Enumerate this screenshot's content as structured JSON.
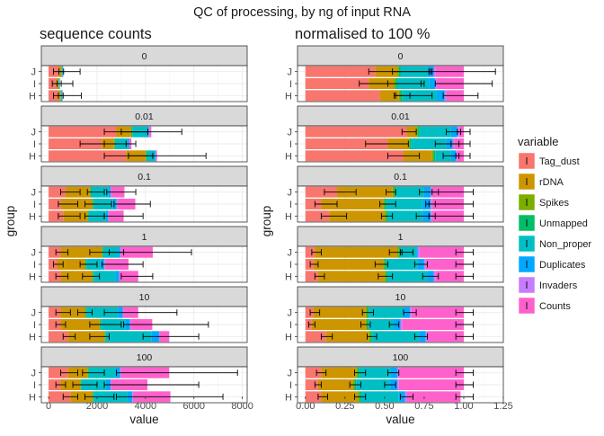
{
  "chart_data": {
    "title": "QC of processing, by ng of input RNA",
    "legend": {
      "title": "variable",
      "placement": "right",
      "items": [
        {
          "name": "Tag_dust",
          "color": "#F8766D"
        },
        {
          "name": "rDNA",
          "color": "#CD9600"
        },
        {
          "name": "Spikes",
          "color": "#7CAE00"
        },
        {
          "name": "Unmapped",
          "color": "#00BE67"
        },
        {
          "name": "Non_proper",
          "color": "#00BFC4"
        },
        {
          "name": "Duplicates",
          "color": "#00A9FF"
        },
        {
          "name": "Invaders",
          "color": "#C77CFF"
        },
        {
          "name": "Counts",
          "color": "#FF61CC"
        }
      ]
    },
    "panels": [
      {
        "id": "counts",
        "type": "bar",
        "subtitle": "sequence counts",
        "xlabel": "value",
        "ylabel": "group",
        "xlim": [
          -300,
          8200
        ],
        "xticks": [
          0,
          2000,
          4000,
          6000,
          8000
        ],
        "xtick_labels": [
          "0",
          "2000",
          "4000",
          "6000",
          "8000"
        ],
        "grid": true
      },
      {
        "id": "norm",
        "type": "bar",
        "subtitle": "normalised to 100 %",
        "xlabel": "value",
        "ylabel": "group",
        "xlim": [
          -0.05,
          1.25
        ],
        "xticks": [
          0,
          0.25,
          0.5,
          0.75,
          1.0,
          1.25
        ],
        "xtick_labels": [
          "0.00",
          "0.25",
          "0.50",
          "0.75",
          "1.00",
          "1.25"
        ],
        "grid": true
      }
    ],
    "facets": [
      "0",
      "0.01",
      "0.1",
      "1",
      "10",
      "100"
    ],
    "groups": [
      "J",
      "I",
      "H"
    ],
    "counts_data": {
      "0": {
        "J": {
          "segments": [
            400,
            120,
            10,
            10,
            40,
            20,
            5,
            5
          ],
          "errors": [
            [
              200,
              1300
            ],
            [
              420,
              620
            ]
          ]
        },
        "I": {
          "segments": [
            300,
            100,
            10,
            10,
            30,
            15,
            5,
            5
          ],
          "errors": [
            [
              150,
              1000
            ],
            [
              350,
              520
            ]
          ]
        },
        "H": {
          "segments": [
            380,
            110,
            10,
            10,
            40,
            20,
            5,
            5
          ],
          "errors": [
            [
              200,
              1350
            ],
            [
              400,
              600
            ]
          ]
        }
      },
      "0.01": {
        "J": {
          "segments": [
            2800,
            600,
            30,
            30,
            600,
            80,
            20,
            80
          ],
          "errors": [
            [
              2300,
              4100
            ],
            [
              3000,
              5500
            ]
          ]
        },
        "I": {
          "segments": [
            2200,
            500,
            30,
            30,
            500,
            60,
            20,
            80
          ],
          "errors": [
            [
              1300,
              3200
            ],
            [
              2300,
              3600
            ]
          ]
        },
        "H": {
          "segments": [
            3200,
            800,
            30,
            30,
            300,
            60,
            20,
            40
          ],
          "errors": [
            [
              2300,
              4300
            ],
            [
              3300,
              6500
            ]
          ]
        }
      },
      "0.1": {
        "J": {
          "segments": [
            700,
            1000,
            30,
            30,
            700,
            100,
            20,
            550
          ],
          "errors": [
            [
              500,
              1300
            ],
            [
              1600,
              2300
            ],
            [
              2400,
              3600
            ]
          ]
        },
        "I": {
          "segments": [
            500,
            1300,
            30,
            30,
            800,
            150,
            20,
            750
          ],
          "errors": [
            [
              400,
              1200
            ],
            [
              1500,
              2600
            ],
            [
              2700,
              4200
            ]
          ]
        },
        "H": {
          "segments": [
            600,
            1000,
            30,
            30,
            700,
            100,
            20,
            620
          ],
          "errors": [
            [
              400,
              1300
            ],
            [
              1500,
              2300
            ],
            [
              2300,
              3900
            ]
          ]
        }
      },
      "1": {
        "J": {
          "segments": [
            500,
            1700,
            30,
            30,
            600,
            100,
            20,
            1320
          ],
          "errors": [
            [
              300,
              800
            ],
            [
              1700,
              3100
            ],
            [
              2500,
              5900
            ]
          ]
        },
        "I": {
          "segments": [
            350,
            1150,
            30,
            30,
            600,
            150,
            20,
            970
          ],
          "errors": [
            [
              200,
              600
            ],
            [
              1300,
              2000
            ],
            [
              2200,
              3900
            ]
          ]
        },
        "H": {
          "segments": [
            500,
            1300,
            30,
            30,
            900,
            150,
            20,
            770
          ],
          "errors": [
            [
              300,
              800
            ],
            [
              1400,
              2100
            ],
            [
              3000,
              4300
            ]
          ]
        }
      },
      "10": {
        "J": {
          "segments": [
            500,
            1000,
            30,
            30,
            1300,
            200,
            20,
            620
          ],
          "errors": [
            [
              300,
              900
            ],
            [
              1200,
              1800
            ],
            [
              2300,
              5300
            ]
          ]
        },
        "I": {
          "segments": [
            500,
            1600,
            30,
            30,
            1000,
            200,
            20,
            900
          ],
          "errors": [
            [
              300,
              700
            ],
            [
              1700,
              3000
            ],
            [
              3100,
              6600
            ]
          ]
        },
        "H": {
          "segments": [
            800,
            1500,
            30,
            30,
            1900,
            300,
            20,
            400
          ],
          "errors": [
            [
              600,
              1100
            ],
            [
              1700,
              2500
            ],
            [
              3900,
              6200
            ]
          ]
        }
      },
      "100": {
        "J": {
          "segments": [
            800,
            800,
            30,
            30,
            1100,
            200,
            20,
            2000
          ],
          "errors": [
            [
              500,
              1200
            ],
            [
              1400,
              2300
            ],
            [
              2800,
              7800
            ]
          ]
        },
        "I": {
          "segments": [
            500,
            800,
            30,
            30,
            1000,
            200,
            20,
            1500
          ],
          "errors": [
            [
              300,
              700
            ],
            [
              1000,
              2000
            ],
            [
              2300,
              6200
            ]
          ]
        },
        "H": {
          "segments": [
            900,
            900,
            30,
            30,
            1400,
            200,
            20,
            1550
          ],
          "errors": [
            [
              600,
              1200
            ],
            [
              1500,
              2700
            ],
            [
              2800,
              7200
            ]
          ]
        }
      }
    },
    "norm_data": {
      "0": {
        "J": {
          "segments": [
            0.44,
            0.14,
            0.01,
            0.01,
            0.17,
            0.04,
            0.01,
            0.18
          ],
          "errors": [
            [
              0.4,
              0.8
            ],
            [
              0.55,
              0.79
            ],
            [
              0.78,
              1.2
            ]
          ]
        },
        "I": {
          "segments": [
            0.4,
            0.16,
            0.01,
            0.01,
            0.2,
            0.04,
            0.01,
            0.17
          ],
          "errors": [
            [
              0.34,
              0.73
            ],
            [
              0.52,
              0.75
            ],
            [
              0.82,
              1.18
            ]
          ]
        },
        "H": {
          "segments": [
            0.47,
            0.12,
            0.01,
            0.01,
            0.22,
            0.05,
            0.01,
            0.11
          ],
          "errors": [
            [
              0.56,
              0.66
            ],
            [
              0.57,
              0.8
            ],
            [
              0.87,
              1.09
            ]
          ]
        }
      },
      "0.01": {
        "J": {
          "segments": [
            0.64,
            0.06,
            0.01,
            0.01,
            0.2,
            0.04,
            0.01,
            0.03
          ],
          "errors": [
            [
              0.61,
              0.7
            ],
            [
              0.89,
              0.98
            ],
            [
              0.96,
              1.04
            ]
          ]
        },
        "I": {
          "segments": [
            0.52,
            0.13,
            0.01,
            0.01,
            0.22,
            0.04,
            0.01,
            0.06
          ],
          "errors": [
            [
              0.38,
              0.65
            ],
            [
              0.82,
              0.97
            ],
            [
              0.92,
              1.04
            ]
          ]
        },
        "H": {
          "segments": [
            0.62,
            0.18,
            0.01,
            0.01,
            0.1,
            0.03,
            0.01,
            0.04
          ],
          "errors": [
            [
              0.52,
              0.72
            ],
            [
              0.87,
              0.97
            ],
            [
              0.95,
              1.04
            ]
          ]
        }
      },
      "0.1": {
        "J": {
          "segments": [
            0.2,
            0.35,
            0.01,
            0.01,
            0.18,
            0.04,
            0.01,
            0.2
          ],
          "errors": [
            [
              0.12,
              0.32
            ],
            [
              0.51,
              0.57
            ],
            [
              0.72,
              0.84
            ],
            [
              0.8,
              1.06
            ]
          ]
        },
        "I": {
          "segments": [
            0.1,
            0.39,
            0.01,
            0.01,
            0.23,
            0.05,
            0.01,
            0.2
          ],
          "errors": [
            [
              0.06,
              0.2
            ],
            [
              0.47,
              0.57
            ],
            [
              0.76,
              0.82
            ],
            [
              0.78,
              1.06
            ]
          ]
        },
        "H": {
          "segments": [
            0.15,
            0.35,
            0.01,
            0.01,
            0.22,
            0.05,
            0.01,
            0.2
          ],
          "errors": [
            [
              0.1,
              0.26
            ],
            [
              0.48,
              0.55
            ],
            [
              0.7,
              0.82
            ],
            [
              0.78,
              1.06
            ]
          ]
        }
      },
      "1": {
        "J": {
          "segments": [
            0.06,
            0.52,
            0.01,
            0.01,
            0.1,
            0.01,
            0.01,
            0.28
          ],
          "errors": [
            [
              0.04,
              0.1
            ],
            [
              0.53,
              0.61
            ],
            [
              0.6,
              0.68
            ],
            [
              0.95,
              1.06
            ]
          ]
        },
        "I": {
          "segments": [
            0.05,
            0.44,
            0.01,
            0.01,
            0.2,
            0.04,
            0.01,
            0.24
          ],
          "errors": [
            [
              0.03,
              0.08
            ],
            [
              0.44,
              0.52
            ],
            [
              0.69,
              0.77
            ],
            [
              0.95,
              1.06
            ]
          ]
        },
        "H": {
          "segments": [
            0.08,
            0.42,
            0.01,
            0.01,
            0.25,
            0.04,
            0.01,
            0.18
          ],
          "errors": [
            [
              0.06,
              0.12
            ],
            [
              0.46,
              0.55
            ],
            [
              0.74,
              0.84
            ],
            [
              0.95,
              1.06
            ]
          ]
        }
      },
      "10": {
        "J": {
          "segments": [
            0.05,
            0.33,
            0.01,
            0.01,
            0.22,
            0.04,
            0.01,
            0.33
          ],
          "errors": [
            [
              0.03,
              0.09
            ],
            [
              0.36,
              0.43
            ],
            [
              0.62,
              0.7
            ],
            [
              0.95,
              1.06
            ]
          ]
        },
        "I": {
          "segments": [
            0.04,
            0.34,
            0.01,
            0.01,
            0.16,
            0.04,
            0.01,
            0.39
          ],
          "errors": [
            [
              0.02,
              0.06
            ],
            [
              0.35,
              0.41
            ],
            [
              0.53,
              0.59
            ],
            [
              0.95,
              1.06
            ]
          ]
        },
        "H": {
          "segments": [
            0.13,
            0.27,
            0.01,
            0.01,
            0.3,
            0.04,
            0.01,
            0.23
          ],
          "errors": [
            [
              0.1,
              0.17
            ],
            [
              0.39,
              0.45
            ],
            [
              0.69,
              0.77
            ],
            [
              0.95,
              1.06
            ]
          ]
        }
      },
      "100": {
        "J": {
          "segments": [
            0.1,
            0.22,
            0.01,
            0.01,
            0.2,
            0.04,
            0.01,
            0.41
          ],
          "errors": [
            [
              0.07,
              0.13
            ],
            [
              0.31,
              0.38
            ],
            [
              0.52,
              0.59
            ],
            [
              0.95,
              1.06
            ]
          ]
        },
        "I": {
          "segments": [
            0.08,
            0.22,
            0.01,
            0.01,
            0.21,
            0.05,
            0.01,
            0.41
          ],
          "errors": [
            [
              0.06,
              0.1
            ],
            [
              0.28,
              0.35
            ],
            [
              0.5,
              0.57
            ],
            [
              0.95,
              1.06
            ]
          ]
        },
        "H": {
          "segments": [
            0.1,
            0.23,
            0.01,
            0.01,
            0.24,
            0.04,
            0.01,
            0.34
          ],
          "errors": [
            [
              0.08,
              0.14
            ],
            [
              0.31,
              0.38
            ],
            [
              0.6,
              0.68
            ],
            [
              0.95,
              1.06
            ]
          ]
        }
      }
    }
  }
}
